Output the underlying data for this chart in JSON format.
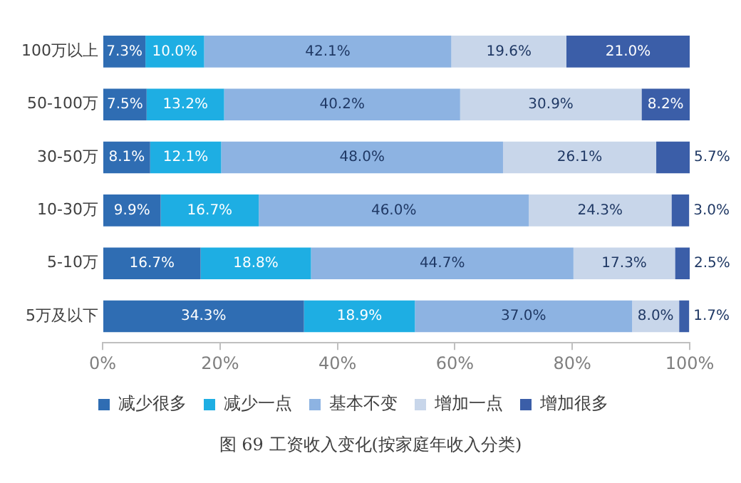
{
  "chart_data": {
    "type": "bar",
    "orientation": "horizontal",
    "stacked": true,
    "categories": [
      "100万以上",
      "50-100万",
      "30-50万",
      "10-30万",
      "5-10万",
      "5万及以下"
    ],
    "series": [
      {
        "name": "减少很多",
        "color": "#2f6db3",
        "values": [
          7.3,
          7.5,
          8.1,
          9.9,
          16.7,
          34.3
        ],
        "value_labels": [
          "7.3%",
          "7.5%",
          "8.1%",
          "9.9%",
          "16.7%",
          "34.3%"
        ]
      },
      {
        "name": "减少一点",
        "color": "#1eaee3",
        "values": [
          10.0,
          13.2,
          12.1,
          16.7,
          18.8,
          18.9
        ],
        "value_labels": [
          "10.0%",
          "13.2%",
          "12.1%",
          "16.7%",
          "18.8%",
          "18.9%"
        ]
      },
      {
        "name": "基本不变",
        "color": "#8db3e2",
        "values": [
          42.1,
          40.2,
          48.0,
          46.0,
          44.7,
          37.0
        ],
        "value_labels": [
          "42.1%",
          "40.2%",
          "48.0%",
          "46.0%",
          "44.7%",
          "37.0%"
        ]
      },
      {
        "name": "增加一点",
        "color": "#c8d6ea",
        "values": [
          19.6,
          30.9,
          26.1,
          24.3,
          17.3,
          8.0
        ],
        "value_labels": [
          "19.6%",
          "30.9%",
          "26.1%",
          "24.3%",
          "17.3%",
          "8.0%"
        ]
      },
      {
        "name": "增加很多",
        "color": "#3b5ea8",
        "values": [
          21.0,
          8.2,
          5.7,
          3.0,
          2.5,
          1.7
        ],
        "value_labels": [
          "21.0%",
          "8.2%",
          "5.7%",
          "3.0%",
          "2.5%",
          "1.7%"
        ]
      }
    ],
    "xlim": [
      0,
      100
    ],
    "xticks": [
      {
        "value": 0,
        "label": "0%"
      },
      {
        "value": 20,
        "label": "20%"
      },
      {
        "value": 40,
        "label": "40%"
      },
      {
        "value": 60,
        "label": "60%"
      },
      {
        "value": 80,
        "label": "80%"
      },
      {
        "value": 100,
        "label": "100%"
      }
    ],
    "grid": false,
    "legend": "bottom",
    "annotations": [
      "图 69 工资收入变化(按家庭年收入分类)"
    ]
  }
}
